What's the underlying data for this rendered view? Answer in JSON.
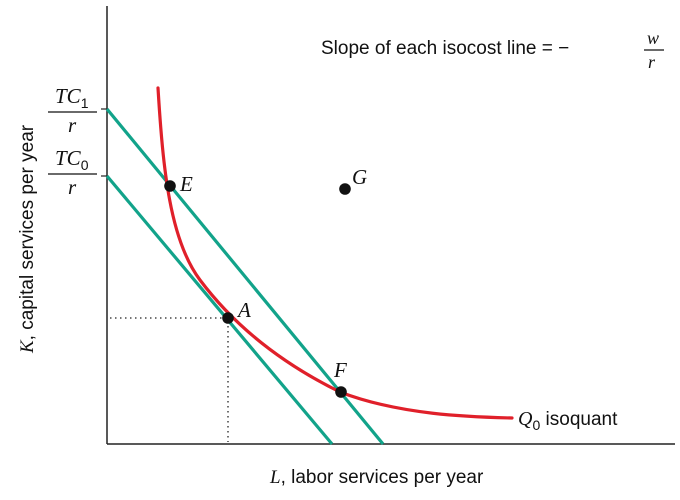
{
  "axes": {
    "x_label": {
      "var": "L",
      "rest": ", labor services per year"
    },
    "y_label": {
      "var": "K",
      "rest": ", capital services per year"
    },
    "y_ticks": [
      {
        "num": "TC",
        "sub": "1",
        "den": "r"
      },
      {
        "num": "TC",
        "sub": "0",
        "den": "r"
      }
    ]
  },
  "annotation": {
    "text": "Slope of each isocost line = −",
    "frac_num": "w",
    "frac_den": "r"
  },
  "isoquant": {
    "name": "Q",
    "sub": "0",
    "rest": " isoquant",
    "color": "#e0202a"
  },
  "isocost_color": "#12a38a",
  "points": [
    {
      "label": "E"
    },
    {
      "label": "A"
    },
    {
      "label": "F"
    },
    {
      "label": "G"
    }
  ]
}
